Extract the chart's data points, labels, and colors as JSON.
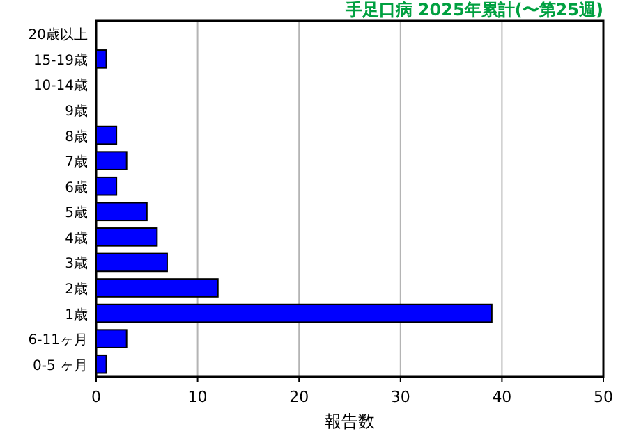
{
  "chart_data": {
    "type": "bar",
    "orientation": "horizontal",
    "title": "手足口病 2025年累計(〜第25週)",
    "xlabel": "報告数",
    "categories": [
      "20歳以上",
      "15-19歳",
      "10-14歳",
      "9歳",
      "8歳",
      "7歳",
      "6歳",
      "5歳",
      "4歳",
      "3歳",
      "2歳",
      "1歳",
      "6-11ヶ月",
      "0-5 ヶ月"
    ],
    "values": [
      0,
      1,
      0,
      0,
      2,
      3,
      2,
      5,
      6,
      7,
      12,
      39,
      3,
      1
    ],
    "color": "#0000ff",
    "xlim": [
      0,
      50
    ],
    "xticks": [
      0,
      10,
      20,
      30,
      40,
      50
    ],
    "grid": "x"
  }
}
